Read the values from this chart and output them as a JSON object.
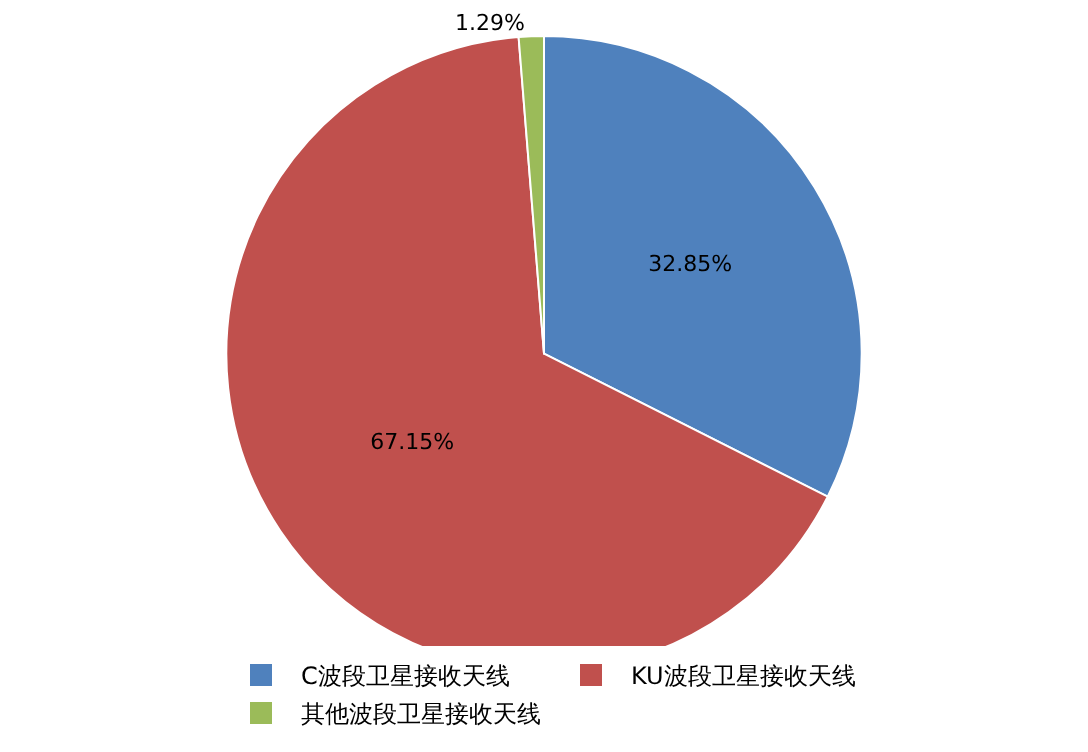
{
  "chart_data": {
    "type": "pie",
    "categories": [
      "C波段卫星接收天线",
      "KU波段卫星接收天线",
      "其他波段卫星接收天线"
    ],
    "values": [
      32.85,
      67.15,
      1.29
    ],
    "value_labels": [
      "32.85%",
      "67.15%",
      "1.29%"
    ],
    "colors": [
      "#4f81bd",
      "#c0504d",
      "#9bbb59"
    ],
    "legend": "bottom"
  }
}
